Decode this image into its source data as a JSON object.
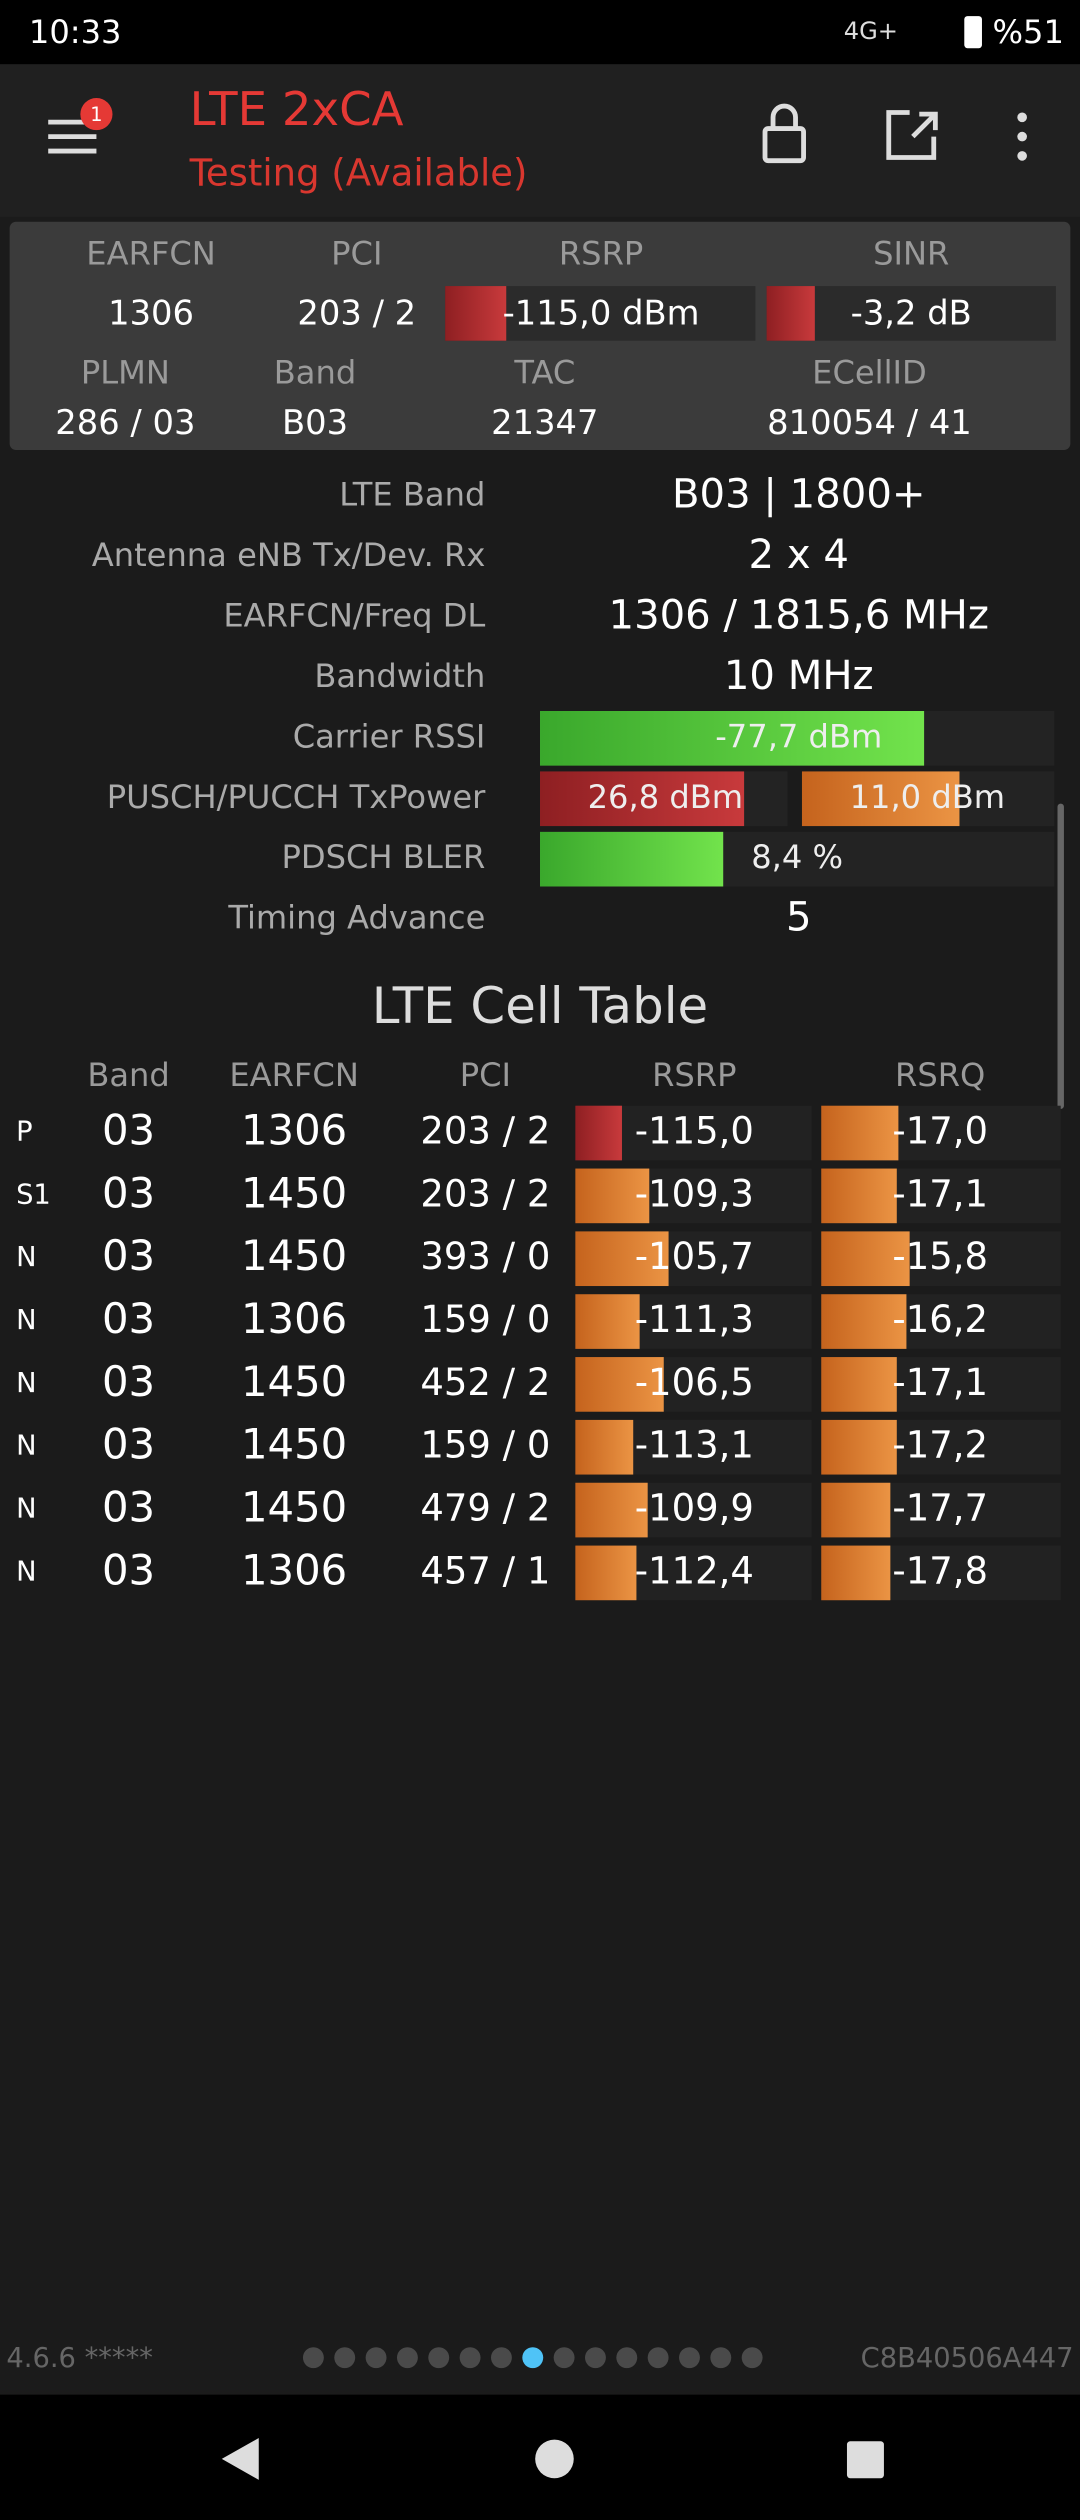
{
  "status_bar": {
    "time": "10:33",
    "network": "4G+",
    "battery": "%51"
  },
  "header": {
    "title": "LTE 2xCA",
    "subtitle": "Testing (Available)",
    "badge": "1"
  },
  "summary": {
    "row1_labels": [
      "EARFCN",
      "PCI",
      "RSRP",
      "SINR"
    ],
    "row1_values": [
      "1306",
      "203 / 2",
      "-115,0 dBm",
      "-3,2 dB"
    ],
    "row2_labels": [
      "PLMN",
      "Band",
      "TAC",
      "ECellID"
    ],
    "row2_values": [
      "286 / 03",
      "B03",
      "21347",
      "810054 / 41"
    ]
  },
  "details": [
    {
      "label": "LTE Band",
      "values": [
        "B03 | 1800+"
      ]
    },
    {
      "label": "Antenna eNB Tx/Dev. Rx",
      "values": [
        "2 x 4"
      ]
    },
    {
      "label": "EARFCN/Freq DL",
      "values": [
        "1306 / 1815,6 MHz"
      ]
    },
    {
      "label": "Bandwidth",
      "values": [
        "10 MHz"
      ]
    },
    {
      "label": "Carrier RSSI",
      "values": [
        "-77,7 dBm"
      ]
    },
    {
      "label": "PUSCH/PUCCH TxPower",
      "values": [
        "26,8 dBm",
        "11,0 dBm"
      ]
    },
    {
      "label": "PDSCH BLER",
      "values": [
        "8,4 %"
      ]
    },
    {
      "label": "Timing Advance",
      "values": [
        "5"
      ]
    }
  ],
  "cell_table": {
    "title": "LTE Cell Table",
    "columns": [
      "Band",
      "EARFCN",
      "PCI",
      "RSRP",
      "RSRQ"
    ],
    "rows": [
      [
        "P",
        "03",
        "1306",
        "203 / 2",
        "-115,0",
        "-17,0"
      ],
      [
        "S1",
        "03",
        "1450",
        "203 / 2",
        "-109,3",
        "-17,1"
      ],
      [
        "N",
        "03",
        "1450",
        "393 / 0",
        "-105,7",
        "-15,8"
      ],
      [
        "N",
        "03",
        "1306",
        "159 / 0",
        "-111,3",
        "-16,2"
      ],
      [
        "N",
        "03",
        "1450",
        "452 / 2",
        "-106,5",
        "-17,1"
      ],
      [
        "N",
        "03",
        "1450",
        "159 / 0",
        "-113,1",
        "-17,2"
      ],
      [
        "N",
        "03",
        "1450",
        "479 / 2",
        "-109,9",
        "-17,7"
      ],
      [
        "N",
        "03",
        "1306",
        "457 / 1",
        "-112,4",
        "-17,8"
      ]
    ]
  },
  "footer": {
    "version": "4.6.6 *****",
    "device_id": "C8B40506A447"
  }
}
